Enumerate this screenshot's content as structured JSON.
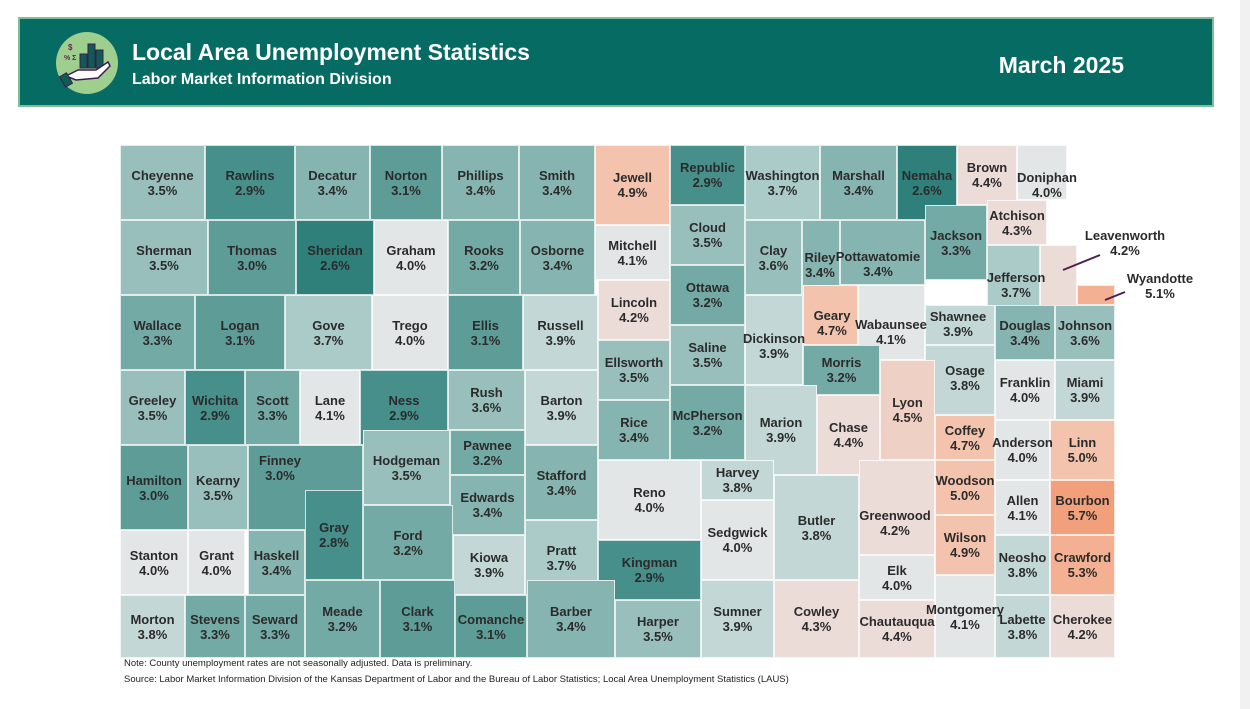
{
  "header": {
    "title": "Local Area Unemployment Statistics",
    "subtitle": "Labor Market Information Division",
    "date": "March 2025",
    "logo_icon": "hand-holding-bar-chart-icon",
    "background": "#066b63"
  },
  "counties": [
    [
      "Cheyenne",
      "3.5%"
    ],
    [
      "Rawlins",
      "2.9%"
    ],
    [
      "Decatur",
      "3.4%"
    ],
    [
      "Norton",
      "3.1%"
    ],
    [
      "Phillips",
      "3.4%"
    ],
    [
      "Smith",
      "3.4%"
    ],
    [
      "Jewell",
      "4.9%"
    ],
    [
      "Republic",
      "2.9%"
    ],
    [
      "Washington",
      "3.7%"
    ],
    [
      "Marshall",
      "3.4%"
    ],
    [
      "Nemaha",
      "2.6%"
    ],
    [
      "Brown",
      "4.4%"
    ],
    [
      "Doniphan",
      "4.0%"
    ],
    [
      "Sherman",
      "3.5%"
    ],
    [
      "Thomas",
      "3.0%"
    ],
    [
      "Sheridan",
      "2.6%"
    ],
    [
      "Graham",
      "4.0%"
    ],
    [
      "Rooks",
      "3.2%"
    ],
    [
      "Osborne",
      "3.4%"
    ],
    [
      "Mitchell",
      "4.1%"
    ],
    [
      "Cloud",
      "3.5%"
    ],
    [
      "Clay",
      "3.6%"
    ],
    [
      "Pottawatomie",
      "3.4%"
    ],
    [
      "Riley",
      "3.4%"
    ],
    [
      "Jackson",
      "3.3%"
    ],
    [
      "Atchison",
      "4.3%"
    ],
    [
      "Leavenworth",
      "4.2%"
    ],
    [
      "Jefferson",
      "3.7%"
    ],
    [
      "Wyandotte",
      "5.1%"
    ],
    [
      "Wallace",
      "3.3%"
    ],
    [
      "Logan",
      "3.1%"
    ],
    [
      "Gove",
      "3.7%"
    ],
    [
      "Trego",
      "4.0%"
    ],
    [
      "Ellis",
      "3.1%"
    ],
    [
      "Russell",
      "3.9%"
    ],
    [
      "Lincoln",
      "4.2%"
    ],
    [
      "Ottawa",
      "3.2%"
    ],
    [
      "Saline",
      "3.5%"
    ],
    [
      "Ellsworth",
      "3.5%"
    ],
    [
      "Dickinson",
      "3.9%"
    ],
    [
      "Geary",
      "4.7%"
    ],
    [
      "Wabaunsee",
      "4.1%"
    ],
    [
      "Shawnee",
      "3.9%"
    ],
    [
      "Douglas",
      "3.4%"
    ],
    [
      "Johnson",
      "3.6%"
    ],
    [
      "Osage",
      "3.8%"
    ],
    [
      "Morris",
      "3.2%"
    ],
    [
      "Franklin",
      "4.0%"
    ],
    [
      "Miami",
      "3.9%"
    ],
    [
      "Greeley",
      "3.5%"
    ],
    [
      "Wichita",
      "2.9%"
    ],
    [
      "Scott",
      "3.3%"
    ],
    [
      "Lane",
      "4.1%"
    ],
    [
      "Ness",
      "2.9%"
    ],
    [
      "Rush",
      "3.6%"
    ],
    [
      "Barton",
      "3.9%"
    ],
    [
      "Rice",
      "3.4%"
    ],
    [
      "McPherson",
      "3.2%"
    ],
    [
      "Marion",
      "3.9%"
    ],
    [
      "Chase",
      "4.4%"
    ],
    [
      "Lyon",
      "4.5%"
    ],
    [
      "Coffey",
      "4.7%"
    ],
    [
      "Anderson",
      "4.0%"
    ],
    [
      "Linn",
      "5.0%"
    ],
    [
      "Hamilton",
      "3.0%"
    ],
    [
      "Kearny",
      "3.5%"
    ],
    [
      "Finney",
      "3.0%"
    ],
    [
      "Gray",
      "2.8%"
    ],
    [
      "Hodgeman",
      "3.5%"
    ],
    [
      "Pawnee",
      "3.2%"
    ],
    [
      "Stafford",
      "3.4%"
    ],
    [
      "Edwards",
      "3.4%"
    ],
    [
      "Ford",
      "3.2%"
    ],
    [
      "Reno",
      "4.0%"
    ],
    [
      "Harvey",
      "3.8%"
    ],
    [
      "Butler",
      "3.8%"
    ],
    [
      "Greenwood",
      "4.2%"
    ],
    [
      "Woodson",
      "5.0%"
    ],
    [
      "Allen",
      "4.1%"
    ],
    [
      "Bourbon",
      "5.7%"
    ],
    [
      "Stanton",
      "4.0%"
    ],
    [
      "Grant",
      "4.0%"
    ],
    [
      "Haskell",
      "3.4%"
    ],
    [
      "Kiowa",
      "3.9%"
    ],
    [
      "Pratt",
      "3.7%"
    ],
    [
      "Kingman",
      "2.9%"
    ],
    [
      "Sedgwick",
      "4.0%"
    ],
    [
      "Wilson",
      "4.9%"
    ],
    [
      "Neosho",
      "3.8%"
    ],
    [
      "Crawford",
      "5.3%"
    ],
    [
      "Elk",
      "4.0%"
    ],
    [
      "Morton",
      "3.8%"
    ],
    [
      "Stevens",
      "3.3%"
    ],
    [
      "Seward",
      "3.3%"
    ],
    [
      "Meade",
      "3.2%"
    ],
    [
      "Clark",
      "3.1%"
    ],
    [
      "Comanche",
      "3.1%"
    ],
    [
      "Barber",
      "3.4%"
    ],
    [
      "Harper",
      "3.5%"
    ],
    [
      "Sumner",
      "3.9%"
    ],
    [
      "Cowley",
      "4.3%"
    ],
    [
      "Chautauqua",
      "4.4%"
    ],
    [
      "Montgomery",
      "4.1%"
    ],
    [
      "Labette",
      "3.8%"
    ],
    [
      "Cherokee",
      "4.2%"
    ]
  ],
  "color_scale": {
    "low": "#2f7f7b",
    "mid": "#e3e6e6",
    "high": "#f2a07c"
  },
  "notes": {
    "note": "Note: County unemployment rates are not seasonally adjusted. Data is preliminary.",
    "source": "Source: Labor Market Information Division of the Kansas Department of Labor and the Bureau of Labor Statistics; Local Area Unemployment Statistics (LAUS)"
  }
}
